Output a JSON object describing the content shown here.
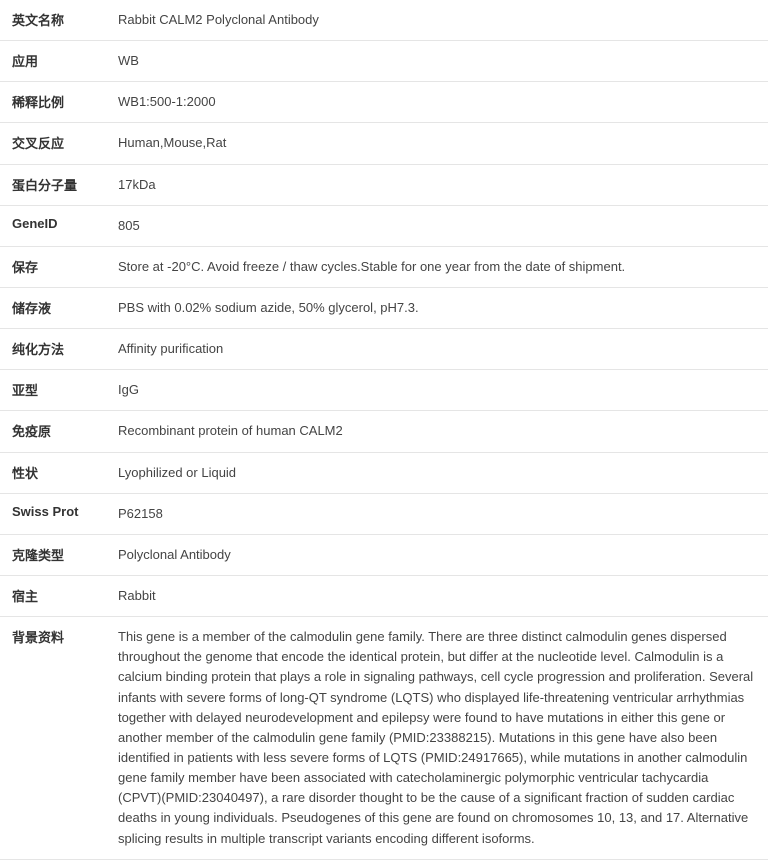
{
  "rows": [
    {
      "label": "英文名称",
      "value": "Rabbit CALM2 Polyclonal Antibody"
    },
    {
      "label": "应用",
      "value": "WB"
    },
    {
      "label": "稀释比例",
      "value": "WB1:500-1:2000"
    },
    {
      "label": "交叉反应",
      "value": "Human,Mouse,Rat"
    },
    {
      "label": "蛋白分子量",
      "value": "17kDa"
    },
    {
      "label": "GeneID",
      "value": "805"
    },
    {
      "label": "保存",
      "value": "Store at -20°C. Avoid freeze / thaw cycles.Stable for one year from the date of shipment."
    },
    {
      "label": "储存液",
      "value": "PBS with 0.02% sodium azide, 50% glycerol, pH7.3."
    },
    {
      "label": "纯化方法",
      "value": "Affinity purification"
    },
    {
      "label": "亚型",
      "value": "IgG"
    },
    {
      "label": "免疫原",
      "value": "Recombinant protein of human CALM2"
    },
    {
      "label": "性状",
      "value": "Lyophilized or Liquid"
    },
    {
      "label": "Swiss Prot",
      "value": "P62158"
    },
    {
      "label": "克隆类型",
      "value": "Polyclonal Antibody"
    },
    {
      "label": "宿主",
      "value": "Rabbit"
    },
    {
      "label": "背景资料",
      "value": "This gene is a member of the calmodulin gene family. There are three distinct calmodulin genes dispersed throughout the genome that encode the identical protein, but differ at the nucleotide level. Calmodulin is a calcium binding protein that plays a role in signaling pathways, cell cycle progression and proliferation. Several infants with severe forms of long-QT syndrome (LQTS) who displayed life-threatening ventricular arrhythmias together with delayed neurodevelopment and epilepsy were found to have mutations in either this gene or another member of the calmodulin gene family (PMID:23388215). Mutations in this gene have also been identified in patients with less severe forms of LQTS (PMID:24917665), while mutations in another calmodulin gene family member have been associated with catecholaminergic polymorphic ventricular tachycardia (CPVT)(PMID:23040497), a rare disorder thought to be the cause of a significant fraction of sudden cardiac deaths in young individuals. Pseudogenes of this gene are found on chromosomes 10, 13, and 17. Alternative splicing results in multiple transcript variants encoding different isoforms."
    }
  ]
}
